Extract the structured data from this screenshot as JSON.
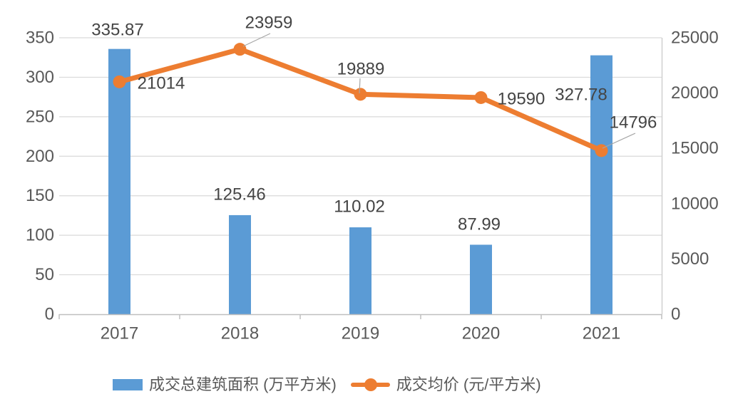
{
  "chart_data": {
    "type": "combo-bar-line",
    "title": "",
    "categories": [
      "2017",
      "2018",
      "2019",
      "2020",
      "2021"
    ],
    "series": [
      {
        "name": "成交总建筑面积 (万平方米)",
        "type": "bar",
        "axis": "left",
        "color": "#5B9BD5",
        "values": [
          335.87,
          125.46,
          110.02,
          87.99,
          327.78
        ],
        "labels": [
          "335.87",
          "125.46",
          "110.02",
          "87.99",
          "327.78"
        ]
      },
      {
        "name": "成交均价 (元/平方米)",
        "type": "line",
        "axis": "right",
        "color": "#ED7D31",
        "values": [
          21014,
          23959,
          19889,
          19590,
          14796
        ],
        "labels": [
          "21014",
          "23959",
          "19889",
          "19590",
          "14796"
        ]
      }
    ],
    "left_axis": {
      "min": 0,
      "max": 350,
      "step": 50,
      "ticks": [
        "0",
        "50",
        "100",
        "150",
        "200",
        "250",
        "300",
        "350"
      ]
    },
    "right_axis": {
      "min": 0,
      "max": 25000,
      "step": 5000,
      "ticks": [
        "0",
        "5000",
        "10000",
        "15000",
        "20000",
        "25000"
      ]
    },
    "grid": true,
    "legend_position": "bottom"
  },
  "legend": {
    "items": [
      {
        "label": "成交总建筑面积 (万平方米)",
        "marker": "bar-swatch",
        "color": "#5B9BD5"
      },
      {
        "label": "成交均价 (元/平方米)",
        "marker": "line-marker",
        "color": "#ED7D31"
      }
    ]
  },
  "colors": {
    "bar": "#5B9BD5",
    "line": "#ED7D31",
    "gridline": "#D9D9D9",
    "axis_line": "#BFBFBF",
    "right_axis_line": "#D0D0D0",
    "tick_text": "#595959",
    "data_label_text": "#444444",
    "leader_line": "#A6A6A6",
    "background": "#FFFFFF"
  }
}
